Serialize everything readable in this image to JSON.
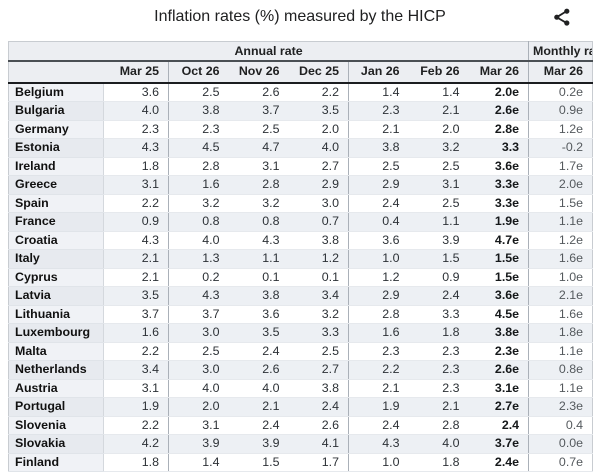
{
  "title": "Inflation rates (%) measured by the HICP",
  "share_icon": "share-network-icon",
  "colors": {
    "header_bg": "#eceef2",
    "stripe_bg": "#edf0f4",
    "country_bg": "#f0f2f6",
    "dark_rule": "#1b1d20",
    "group_border": "#aab0b8",
    "text": "#202122"
  },
  "table": {
    "group_headers": {
      "annual": "Annual rate",
      "monthly": "Monthly rate"
    },
    "month_columns": [
      "Mar 25",
      "Oct 26",
      "Nov 26",
      "Dec 25",
      "Jan 26",
      "Feb 26",
      "Mar 26"
    ],
    "monthly_month_column": "Mar 26",
    "rows": [
      {
        "country": "Belgium",
        "annual": [
          "3.6",
          "2.5",
          "2.6",
          "2.2",
          "1.4",
          "1.4",
          "2.0e"
        ],
        "monthly": "0.2e"
      },
      {
        "country": "Bulgaria",
        "annual": [
          "4.0",
          "3.8",
          "3.7",
          "3.5",
          "2.3",
          "2.1",
          "2.6e"
        ],
        "monthly": "0.9e"
      },
      {
        "country": "Germany",
        "annual": [
          "2.3",
          "2.3",
          "2.5",
          "2.0",
          "2.1",
          "2.0",
          "2.8e"
        ],
        "monthly": "1.2e"
      },
      {
        "country": "Estonia",
        "annual": [
          "4.3",
          "4.5",
          "4.7",
          "4.0",
          "3.8",
          "3.2",
          "3.3"
        ],
        "monthly": "-0.2"
      },
      {
        "country": "Ireland",
        "annual": [
          "1.8",
          "2.8",
          "3.1",
          "2.7",
          "2.5",
          "2.5",
          "3.6e"
        ],
        "monthly": "1.7e"
      },
      {
        "country": "Greece",
        "annual": [
          "3.1",
          "1.6",
          "2.8",
          "2.9",
          "2.9",
          "3.1",
          "3.3e"
        ],
        "monthly": "2.0e"
      },
      {
        "country": "Spain",
        "annual": [
          "2.2",
          "3.2",
          "3.2",
          "3.0",
          "2.4",
          "2.5",
          "3.3e"
        ],
        "monthly": "1.5e"
      },
      {
        "country": "France",
        "annual": [
          "0.9",
          "0.8",
          "0.8",
          "0.7",
          "0.4",
          "1.1",
          "1.9e"
        ],
        "monthly": "1.1e"
      },
      {
        "country": "Croatia",
        "annual": [
          "4.3",
          "4.0",
          "4.3",
          "3.8",
          "3.6",
          "3.9",
          "4.7e"
        ],
        "monthly": "1.2e"
      },
      {
        "country": "Italy",
        "annual": [
          "2.1",
          "1.3",
          "1.1",
          "1.2",
          "1.0",
          "1.5",
          "1.5e"
        ],
        "monthly": "1.6e"
      },
      {
        "country": "Cyprus",
        "annual": [
          "2.1",
          "0.2",
          "0.1",
          "0.1",
          "1.2",
          "0.9",
          "1.5e"
        ],
        "monthly": "1.0e"
      },
      {
        "country": "Latvia",
        "annual": [
          "3.5",
          "4.3",
          "3.8",
          "3.4",
          "2.9",
          "2.4",
          "3.6e"
        ],
        "monthly": "2.1e"
      },
      {
        "country": "Lithuania",
        "annual": [
          "3.7",
          "3.7",
          "3.6",
          "3.2",
          "2.8",
          "3.3",
          "4.5e"
        ],
        "monthly": "1.6e"
      },
      {
        "country": "Luxembourg",
        "annual": [
          "1.6",
          "3.0",
          "3.5",
          "3.3",
          "1.6",
          "1.8",
          "3.8e"
        ],
        "monthly": "1.8e"
      },
      {
        "country": "Malta",
        "annual": [
          "2.2",
          "2.5",
          "2.4",
          "2.5",
          "2.3",
          "2.3",
          "2.3e"
        ],
        "monthly": "1.1e"
      },
      {
        "country": "Netherlands",
        "annual": [
          "3.4",
          "3.0",
          "2.6",
          "2.7",
          "2.2",
          "2.3",
          "2.6e"
        ],
        "monthly": "0.8e"
      },
      {
        "country": "Austria",
        "annual": [
          "3.1",
          "4.0",
          "4.0",
          "3.8",
          "2.1",
          "2.3",
          "3.1e"
        ],
        "monthly": "1.1e"
      },
      {
        "country": "Portugal",
        "annual": [
          "1.9",
          "2.0",
          "2.1",
          "2.4",
          "1.9",
          "2.1",
          "2.7e"
        ],
        "monthly": "2.3e"
      },
      {
        "country": "Slovenia",
        "annual": [
          "2.2",
          "3.1",
          "2.4",
          "2.6",
          "2.4",
          "2.8",
          "2.4"
        ],
        "monthly": "0.4"
      },
      {
        "country": "Slovakia",
        "annual": [
          "4.2",
          "3.9",
          "3.9",
          "4.1",
          "4.3",
          "4.0",
          "3.7e"
        ],
        "monthly": "0.0e"
      },
      {
        "country": "Finland",
        "annual": [
          "1.8",
          "1.4",
          "1.5",
          "1.7",
          "1.0",
          "1.8",
          "2.4e"
        ],
        "monthly": "0.7e"
      }
    ]
  }
}
